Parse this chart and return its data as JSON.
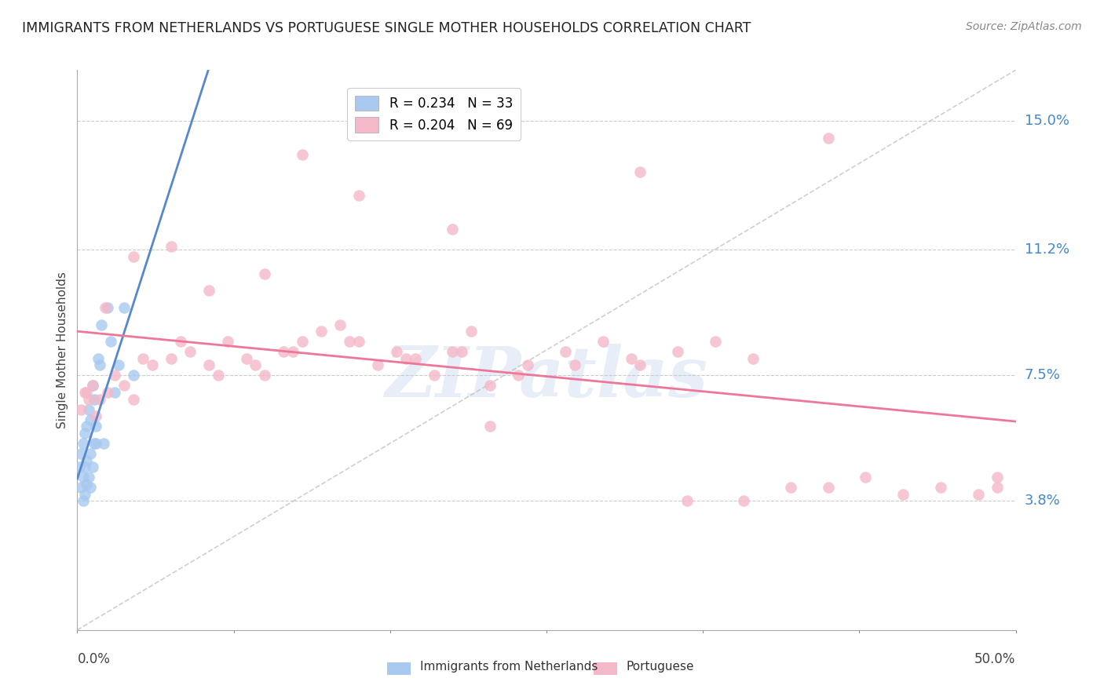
{
  "title": "IMMIGRANTS FROM NETHERLANDS VS PORTUGUESE SINGLE MOTHER HOUSEHOLDS CORRELATION CHART",
  "source": "Source: ZipAtlas.com",
  "ylabel": "Single Mother Households",
  "ytick_labels": [
    "15.0%",
    "11.2%",
    "7.5%",
    "3.8%"
  ],
  "ytick_values": [
    0.15,
    0.112,
    0.075,
    0.038
  ],
  "xtick_labels": [
    "0.0%",
    "50.0%"
  ],
  "xlim": [
    0.0,
    0.5
  ],
  "ylim": [
    0.0,
    0.165
  ],
  "color_netherlands": "#a8c8f0",
  "color_portuguese": "#f5b8c8",
  "trendline_netherlands": "#5588cc",
  "trendline_portuguese": "#ee7799",
  "dashed_line_color": "#bbbbbb",
  "watermark": "ZIPatlas",
  "legend_r1_r": "0.234",
  "legend_r1_n": "33",
  "legend_r2_r": "0.204",
  "legend_r2_n": "69",
  "netherlands_x": [
    0.001,
    0.002,
    0.002,
    0.003,
    0.003,
    0.003,
    0.004,
    0.004,
    0.004,
    0.005,
    0.005,
    0.005,
    0.006,
    0.006,
    0.007,
    0.007,
    0.007,
    0.008,
    0.008,
    0.009,
    0.009,
    0.01,
    0.01,
    0.011,
    0.012,
    0.013,
    0.014,
    0.016,
    0.018,
    0.02,
    0.022,
    0.025,
    0.03
  ],
  "netherlands_y": [
    0.048,
    0.042,
    0.052,
    0.038,
    0.045,
    0.055,
    0.04,
    0.048,
    0.058,
    0.043,
    0.05,
    0.06,
    0.045,
    0.065,
    0.042,
    0.052,
    0.062,
    0.048,
    0.072,
    0.055,
    0.068,
    0.06,
    0.055,
    0.08,
    0.078,
    0.09,
    0.055,
    0.095,
    0.085,
    0.07,
    0.078,
    0.095,
    0.075
  ],
  "portuguese_x": [
    0.002,
    0.004,
    0.006,
    0.008,
    0.01,
    0.012,
    0.016,
    0.02,
    0.025,
    0.03,
    0.04,
    0.05,
    0.06,
    0.07,
    0.08,
    0.09,
    0.1,
    0.11,
    0.12,
    0.13,
    0.14,
    0.15,
    0.16,
    0.17,
    0.18,
    0.19,
    0.2,
    0.21,
    0.22,
    0.24,
    0.26,
    0.28,
    0.3,
    0.32,
    0.34,
    0.36,
    0.38,
    0.4,
    0.42,
    0.44,
    0.46,
    0.48,
    0.49,
    0.005,
    0.015,
    0.035,
    0.055,
    0.075,
    0.095,
    0.115,
    0.145,
    0.175,
    0.205,
    0.235,
    0.265,
    0.295,
    0.325,
    0.355,
    0.05,
    0.1,
    0.15,
    0.2,
    0.3,
    0.4,
    0.49,
    0.03,
    0.07,
    0.12,
    0.22
  ],
  "portuguese_y": [
    0.065,
    0.07,
    0.068,
    0.072,
    0.063,
    0.068,
    0.07,
    0.075,
    0.072,
    0.068,
    0.078,
    0.08,
    0.082,
    0.078,
    0.085,
    0.08,
    0.075,
    0.082,
    0.085,
    0.088,
    0.09,
    0.085,
    0.078,
    0.082,
    0.08,
    0.075,
    0.082,
    0.088,
    0.072,
    0.078,
    0.082,
    0.085,
    0.078,
    0.082,
    0.085,
    0.08,
    0.042,
    0.042,
    0.045,
    0.04,
    0.042,
    0.04,
    0.045,
    0.07,
    0.095,
    0.08,
    0.085,
    0.075,
    0.078,
    0.082,
    0.085,
    0.08,
    0.082,
    0.075,
    0.078,
    0.08,
    0.038,
    0.038,
    0.113,
    0.105,
    0.128,
    0.118,
    0.135,
    0.145,
    0.042,
    0.11,
    0.1,
    0.14,
    0.06
  ]
}
